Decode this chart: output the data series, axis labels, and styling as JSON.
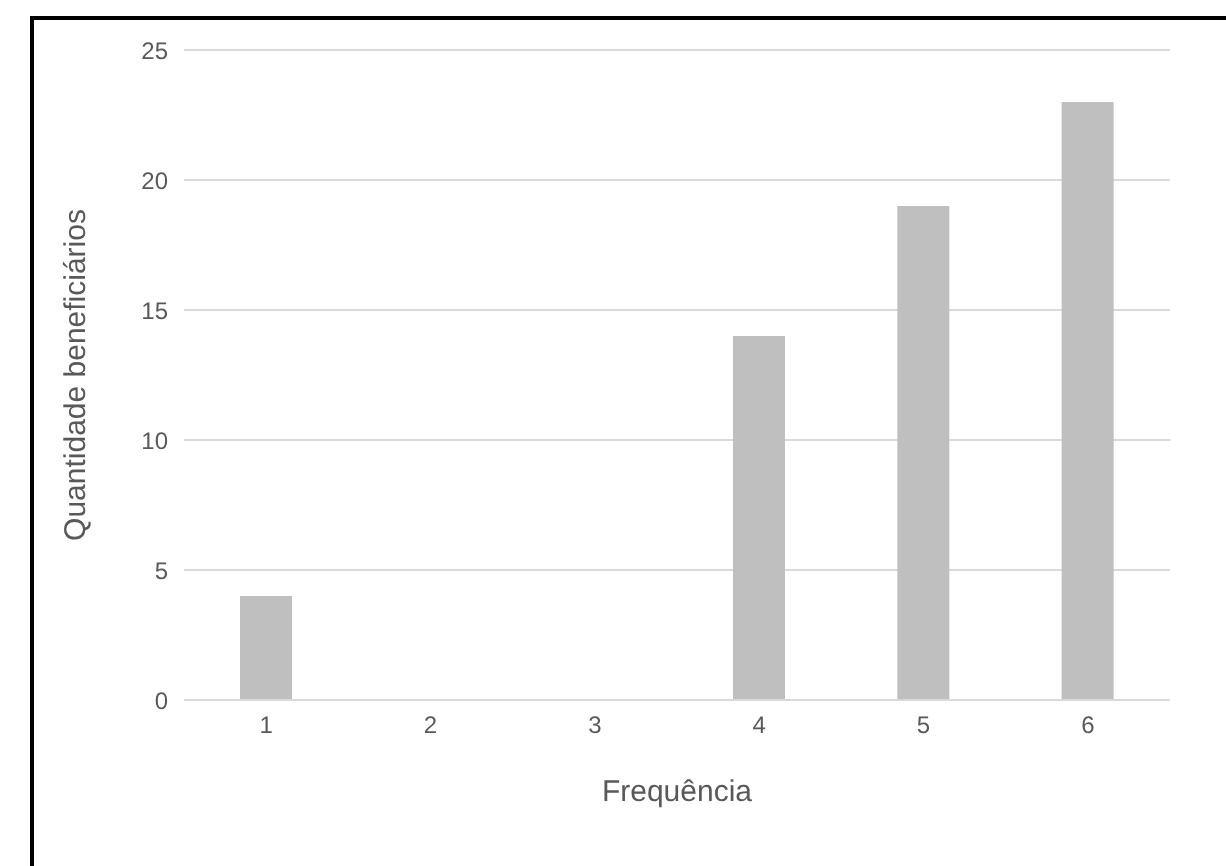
{
  "chart_data": {
    "type": "bar",
    "xlabel": "Frequência",
    "ylabel": "Quantidade beneficiários",
    "categories": [
      "1",
      "2",
      "3",
      "4",
      "5",
      "6"
    ],
    "values": [
      4,
      0,
      0,
      14,
      19,
      23
    ],
    "color": "#bfbfbf",
    "ylim": [
      0,
      25
    ],
    "yticks": [
      0,
      5,
      10,
      15,
      20,
      25
    ],
    "grid": "y"
  }
}
